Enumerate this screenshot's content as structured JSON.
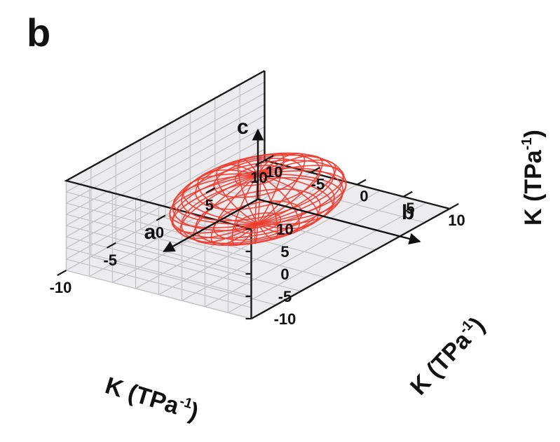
{
  "panel_label": "b",
  "chart_data": {
    "type": "3d-surface-wireframe",
    "axes": {
      "x": {
        "label": "K (TPa",
        "label_sup": "-1",
        "label_close": ")",
        "range": [
          -10,
          10
        ],
        "ticks": [
          -10,
          -5,
          0,
          5,
          10
        ]
      },
      "y": {
        "label": "K (TPa",
        "label_sup": "-1",
        "label_close": ")",
        "range": [
          -10,
          10
        ],
        "ticks": [
          -10,
          -5,
          0,
          5,
          10
        ]
      },
      "z": {
        "label": "K (TPa",
        "label_sup": "-1",
        "label_close": ")",
        "range": [
          -10,
          10
        ],
        "ticks": [
          10,
          5,
          0,
          -5,
          -10
        ]
      }
    },
    "surface": {
      "shape": "ellipsoid",
      "semi_axes": {
        "a": 6.5,
        "b": 6.5,
        "c": 5.5
      },
      "center": [
        0,
        0,
        -1
      ],
      "color": "#f03a2e"
    },
    "crystal_axes": [
      {
        "name": "a"
      },
      {
        "name": "b"
      },
      {
        "name": "c"
      }
    ],
    "grid": true,
    "pane_color": "#ececee"
  }
}
